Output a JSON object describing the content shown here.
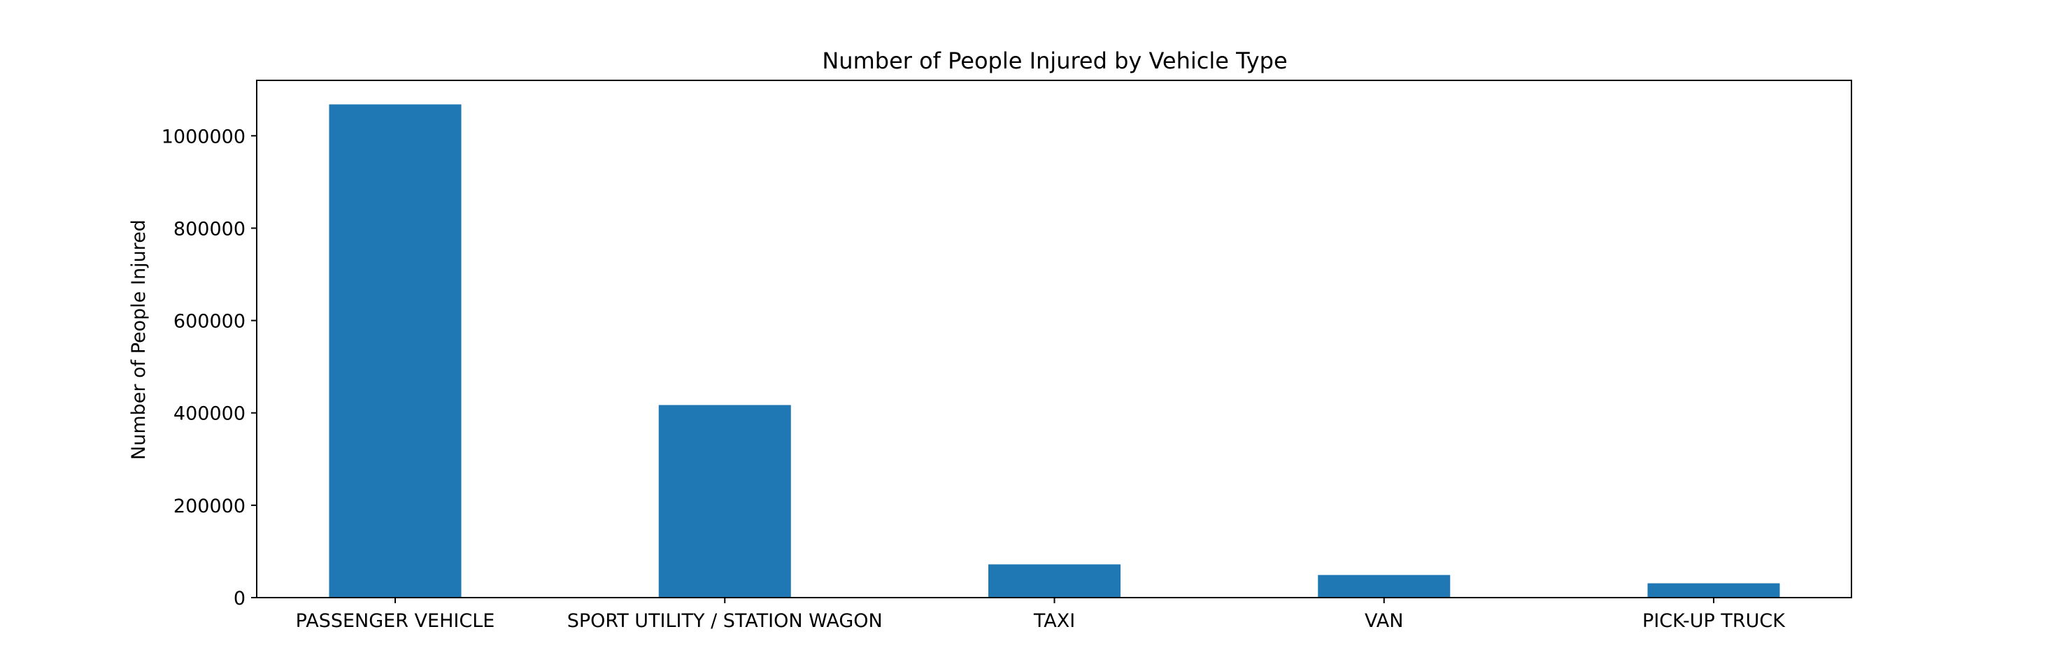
{
  "chart_data": {
    "type": "bar",
    "title": "Number of People Injured by Vehicle Type",
    "xlabel": "",
    "ylabel": "Number of People Injured",
    "categories": [
      "PASSENGER VEHICLE",
      "SPORT UTILITY / STATION WAGON",
      "TAXI",
      "VAN",
      "PICK-UP TRUCK"
    ],
    "values": [
      1068000,
      417000,
      72000,
      49000,
      31000
    ],
    "ylim": [
      0,
      1120000
    ],
    "yticks": [
      0,
      200000,
      400000,
      600000,
      800000,
      1000000
    ],
    "ytick_labels": [
      "0",
      "200000",
      "400000",
      "600000",
      "800000",
      "1000000"
    ],
    "bar_color": "#1f77b4",
    "grid": false,
    "legend": "none"
  }
}
